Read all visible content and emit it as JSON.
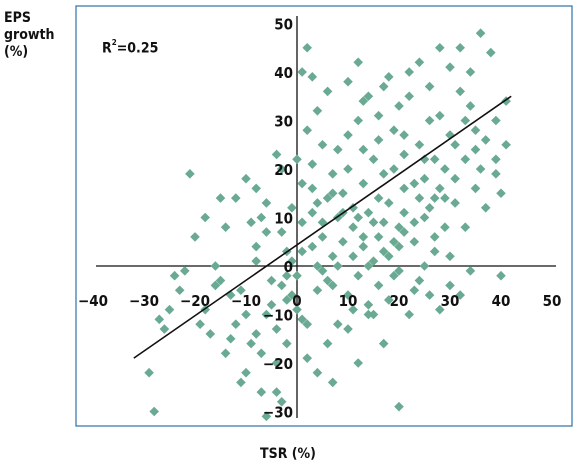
{
  "chart_data": {
    "type": "scatter",
    "title": "",
    "xlabel": "TSR (%)",
    "ylabel_lines": [
      "EPS",
      "growth",
      "(%)"
    ],
    "annotation": {
      "r2_symbol": "R",
      "r2_exp": "2",
      "r2_value": "=0.25"
    },
    "xlim": [
      -40,
      50
    ],
    "ylim": [
      -30,
      50
    ],
    "xticks": [
      -40,
      -30,
      -20,
      -10,
      0,
      10,
      20,
      30,
      40,
      50
    ],
    "yticks": [
      -30,
      -20,
      -10,
      0,
      10,
      20,
      30,
      40,
      50
    ],
    "grid": false,
    "marker_color": "#6aaa92",
    "frame_color": "#2f6fa6",
    "trend_line": {
      "x": [
        -32,
        42
      ],
      "y": [
        -19,
        35
      ]
    },
    "points": [
      [
        -21,
        19
      ],
      [
        -20,
        6
      ],
      [
        -16,
        0
      ],
      [
        -15,
        -3
      ],
      [
        -13,
        -6
      ],
      [
        -13,
        -15
      ],
      [
        -11,
        -24
      ],
      [
        -10,
        -22
      ],
      [
        -10,
        -10
      ],
      [
        -9,
        9
      ],
      [
        -8,
        1
      ],
      [
        -8,
        4
      ],
      [
        -7,
        10
      ],
      [
        -6,
        13
      ],
      [
        -6,
        7
      ],
      [
        -6,
        -10
      ],
      [
        -5,
        -3
      ],
      [
        -5,
        -8
      ],
      [
        -4,
        -13
      ],
      [
        -4,
        -20
      ],
      [
        -3,
        -28
      ],
      [
        -3,
        -4
      ],
      [
        -2,
        -7
      ],
      [
        -2,
        -2
      ],
      [
        -2,
        3
      ],
      [
        -3,
        20
      ],
      [
        -4,
        23
      ],
      [
        -1,
        1
      ],
      [
        -1,
        -6
      ],
      [
        0,
        -2
      ],
      [
        1,
        3
      ],
      [
        1,
        9
      ],
      [
        1,
        40
      ],
      [
        2,
        45
      ],
      [
        3,
        39
      ],
      [
        1,
        -11
      ],
      [
        2,
        -12
      ],
      [
        3,
        4
      ],
      [
        3,
        11
      ],
      [
        3,
        16
      ],
      [
        4,
        0
      ],
      [
        4,
        13
      ],
      [
        4,
        -5
      ],
      [
        5,
        6
      ],
      [
        5,
        9
      ],
      [
        5,
        25
      ],
      [
        6,
        14
      ],
      [
        6,
        -3
      ],
      [
        7,
        -4
      ],
      [
        7,
        2
      ],
      [
        7,
        19
      ],
      [
        7,
        -24
      ],
      [
        8,
        0
      ],
      [
        8,
        10
      ],
      [
        9,
        5
      ],
      [
        9,
        15
      ],
      [
        10,
        -6
      ],
      [
        10,
        20
      ],
      [
        10,
        27
      ],
      [
        11,
        8
      ],
      [
        11,
        12
      ],
      [
        12,
        -2
      ],
      [
        12,
        10
      ],
      [
        12,
        30
      ],
      [
        13,
        4
      ],
      [
        13,
        17
      ],
      [
        13,
        34
      ],
      [
        14,
        -8
      ],
      [
        14,
        0
      ],
      [
        14,
        11
      ],
      [
        15,
        22
      ],
      [
        15,
        -10
      ],
      [
        16,
        6
      ],
      [
        16,
        14
      ],
      [
        16,
        26
      ],
      [
        17,
        -16
      ],
      [
        17,
        9
      ],
      [
        17,
        37
      ],
      [
        18,
        2
      ],
      [
        18,
        13
      ],
      [
        19,
        20
      ],
      [
        19,
        28
      ],
      [
        20,
        4
      ],
      [
        20,
        8
      ],
      [
        20,
        -29
      ],
      [
        21,
        11
      ],
      [
        21,
        16
      ],
      [
        21,
        23
      ],
      [
        22,
        40
      ],
      [
        23,
        5
      ],
      [
        23,
        9
      ],
      [
        24,
        14
      ],
      [
        24,
        25
      ],
      [
        25,
        0
      ],
      [
        25,
        18
      ],
      [
        26,
        30
      ],
      [
        26,
        12
      ],
      [
        27,
        6
      ],
      [
        27,
        22
      ],
      [
        28,
        45
      ],
      [
        28,
        16
      ],
      [
        29,
        20
      ],
      [
        30,
        27
      ],
      [
        30,
        2
      ],
      [
        31,
        13
      ],
      [
        32,
        36
      ],
      [
        33,
        8
      ],
      [
        34,
        33
      ],
      [
        34,
        40
      ],
      [
        35,
        28
      ],
      [
        36,
        48
      ],
      [
        36,
        20
      ],
      [
        37,
        26
      ],
      [
        38,
        44
      ],
      [
        39,
        22
      ],
      [
        39,
        30
      ],
      [
        40,
        15
      ],
      [
        40,
        -2
      ],
      [
        41,
        25
      ],
      [
        -29,
        -22
      ],
      [
        -28,
        -30
      ],
      [
        -27,
        -11
      ],
      [
        -26,
        -13
      ],
      [
        -25,
        -9
      ],
      [
        -24,
        -2
      ],
      [
        -23,
        -5
      ],
      [
        -22,
        -1
      ],
      [
        -19,
        -12
      ],
      [
        -18,
        -9
      ],
      [
        -17,
        -14
      ],
      [
        -16,
        -4
      ],
      [
        -14,
        -18
      ],
      [
        -12,
        -12
      ],
      [
        -11,
        -5
      ],
      [
        -9,
        -16
      ],
      [
        -8,
        -14
      ],
      [
        -7,
        -18
      ],
      [
        -7,
        -26
      ],
      [
        -6,
        -31
      ],
      [
        -4,
        -26
      ],
      [
        -2,
        -16
      ],
      [
        0,
        -9
      ],
      [
        2,
        -19
      ],
      [
        4,
        -22
      ],
      [
        6,
        -16
      ],
      [
        8,
        -12
      ],
      [
        10,
        -13
      ],
      [
        12,
        -20
      ],
      [
        14,
        -10
      ],
      [
        16,
        -4
      ],
      [
        18,
        -7
      ],
      [
        20,
        -1
      ],
      [
        22,
        -10
      ],
      [
        24,
        -3
      ],
      [
        26,
        -6
      ],
      [
        28,
        -9
      ],
      [
        30,
        -4
      ],
      [
        32,
        -6
      ],
      [
        34,
        -1
      ],
      [
        -12,
        14
      ],
      [
        -10,
        18
      ],
      [
        -8,
        16
      ],
      [
        -14,
        8
      ],
      [
        -15,
        14
      ],
      [
        -18,
        10
      ],
      [
        0,
        22
      ],
      [
        2,
        28
      ],
      [
        4,
        32
      ],
      [
        6,
        36
      ],
      [
        8,
        24
      ],
      [
        10,
        38
      ],
      [
        12,
        42
      ],
      [
        14,
        35
      ],
      [
        16,
        31
      ],
      [
        18,
        39
      ],
      [
        20,
        33
      ],
      [
        22,
        35
      ],
      [
        24,
        42
      ],
      [
        26,
        37
      ],
      [
        28,
        31
      ],
      [
        30,
        41
      ],
      [
        32,
        45
      ],
      [
        11,
        2
      ],
      [
        13,
        6
      ],
      [
        15,
        9
      ],
      [
        17,
        3
      ],
      [
        19,
        -2
      ],
      [
        21,
        7
      ],
      [
        23,
        -5
      ],
      [
        25,
        10
      ],
      [
        27,
        14
      ],
      [
        29,
        8
      ],
      [
        31,
        18
      ],
      [
        33,
        22
      ],
      [
        35,
        16
      ],
      [
        37,
        12
      ],
      [
        39,
        19
      ],
      [
        41,
        34
      ],
      [
        -3,
        7
      ],
      [
        -1,
        12
      ],
      [
        1,
        17
      ],
      [
        3,
        21
      ],
      [
        5,
        -1
      ],
      [
        7,
        15
      ],
      [
        9,
        11
      ],
      [
        11,
        -9
      ],
      [
        13,
        24
      ],
      [
        15,
        1
      ],
      [
        17,
        19
      ],
      [
        19,
        5
      ],
      [
        21,
        27
      ],
      [
        23,
        17
      ],
      [
        25,
        22
      ],
      [
        27,
        3
      ],
      [
        29,
        14
      ],
      [
        31,
        25
      ],
      [
        33,
        30
      ],
      [
        35,
        24
      ]
    ]
  }
}
